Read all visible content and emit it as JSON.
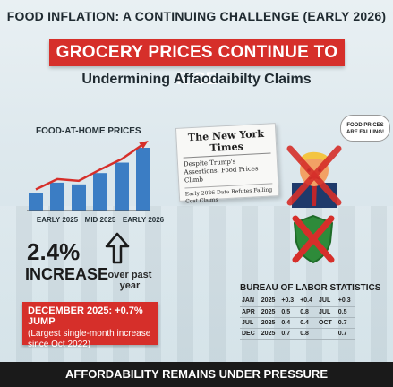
{
  "header": {
    "kicker": "FOOD INFLATION: A CONTINUING CHALLENGE (EARLY 2026)",
    "banner": "GROCERY PRICES CONTINUE TO RISE",
    "subtitle": "Undermining Affaodaibilty Claims"
  },
  "chart_data": {
    "type": "bar",
    "title": "FOOD-AT-HOME PRICES",
    "categories": [
      "",
      "EARLY 2025",
      "",
      "MID 2025",
      "",
      "EARLY 2026"
    ],
    "tick_labels": [
      "EARLY 2025",
      "MID 2025",
      "EARLY 2026"
    ],
    "values": [
      20,
      32,
      30,
      43,
      55,
      72
    ],
    "trend_line": true,
    "colors": {
      "bar": "#3b7dc4",
      "trend": "#d62f2a"
    }
  },
  "stats": {
    "percent": "2.4%",
    "increase": "INCREASE",
    "over_year": "over past year"
  },
  "december_box": {
    "line1": "DECEMBER 2025: +0.7% JUMP",
    "line2": "(Largest single-month increase since Oct 2022)"
  },
  "newspaper": {
    "masthead": "The New York Times",
    "headline1": "Despite Trump's Assertions, Food Prices Climb",
    "headline2": "Early 2026 Data Refutes Falling Cost Claims"
  },
  "speech_bubble": "FOOD PRICES ARE FALLING!",
  "bls": {
    "title": "BUREAU OF LABOR STATISTICS",
    "rows": [
      [
        "JAN",
        "2025",
        "+0.3",
        "+0.4",
        "JUL",
        "+0.3"
      ],
      [
        "APR",
        "2025",
        "0.5",
        "0.8",
        "JUL",
        "0.5"
      ],
      [
        "JUL",
        "2025",
        "0.4",
        "0.4",
        "OCT",
        "0.7"
      ],
      [
        "DEC",
        "2025",
        "0.7",
        "0.8",
        "",
        "0.7"
      ]
    ]
  },
  "footer": "AFFORDABILITY REMAINS UNDER PRESSURE",
  "colors": {
    "accent": "#d62f2a",
    "bar": "#3b7dc4",
    "shield": "#2e8b3a"
  }
}
